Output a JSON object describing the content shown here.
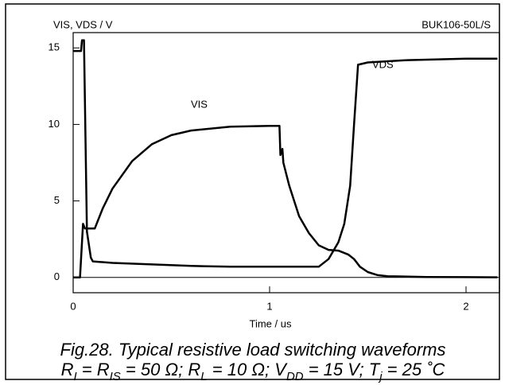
{
  "chart_data": {
    "type": "line",
    "ylabel": "VIS, VDS / V",
    "xlabel": "Time / us",
    "part_number": "BUK106-50L/S",
    "annotations": [
      "VIS",
      "VDS"
    ],
    "xlim": [
      0,
      2.17
    ],
    "ylim": [
      -1,
      16
    ],
    "xticks": [
      0,
      1,
      2
    ],
    "yticks": [
      0,
      5,
      10,
      15
    ],
    "series": [
      {
        "name": "VIS",
        "color": "#000000",
        "x": [
          0,
          0.035,
          0.05,
          0.06,
          0.11,
          0.15,
          0.2,
          0.3,
          0.4,
          0.5,
          0.6,
          0.8,
          1.0,
          1.05,
          1.055,
          1.065,
          1.07,
          1.1,
          1.15,
          1.2,
          1.25,
          1.3,
          1.35,
          1.4,
          1.43,
          1.46,
          1.5,
          1.55,
          1.6,
          1.8,
          2.0,
          2.16
        ],
        "values": [
          0,
          0,
          3.5,
          3.2,
          3.2,
          4.5,
          5.8,
          7.6,
          8.7,
          9.3,
          9.6,
          9.85,
          9.9,
          9.9,
          8.0,
          8.4,
          7.5,
          6.0,
          4.0,
          2.9,
          2.1,
          1.8,
          1.75,
          1.5,
          1.2,
          0.7,
          0.35,
          0.15,
          0.08,
          0.03,
          0.02,
          0.01
        ]
      },
      {
        "name": "VDS",
        "color": "#000000",
        "x": [
          0,
          0.04,
          0.045,
          0.055,
          0.07,
          0.09,
          0.1,
          0.2,
          0.4,
          0.6,
          0.8,
          1.0,
          1.25,
          1.3,
          1.35,
          1.38,
          1.41,
          1.43,
          1.45,
          1.5,
          1.7,
          2.0,
          2.16
        ],
        "values": [
          14.8,
          14.8,
          15.5,
          15.5,
          3.0,
          1.3,
          1.05,
          0.95,
          0.85,
          0.75,
          0.7,
          0.7,
          0.7,
          1.2,
          2.3,
          3.5,
          6.0,
          10.0,
          13.9,
          14.05,
          14.2,
          14.3,
          14.3
        ]
      }
    ],
    "caption": {
      "line1": "Fig.28.   Typical resistive load switching waveforms",
      "line2": [
        "R",
        "I",
        " = R",
        "IS",
        " = 50 Ω; R",
        "L",
        " = 10 Ω; V",
        "DD",
        " = 15 V; T",
        "j",
        " = 25 ˚C"
      ]
    }
  }
}
